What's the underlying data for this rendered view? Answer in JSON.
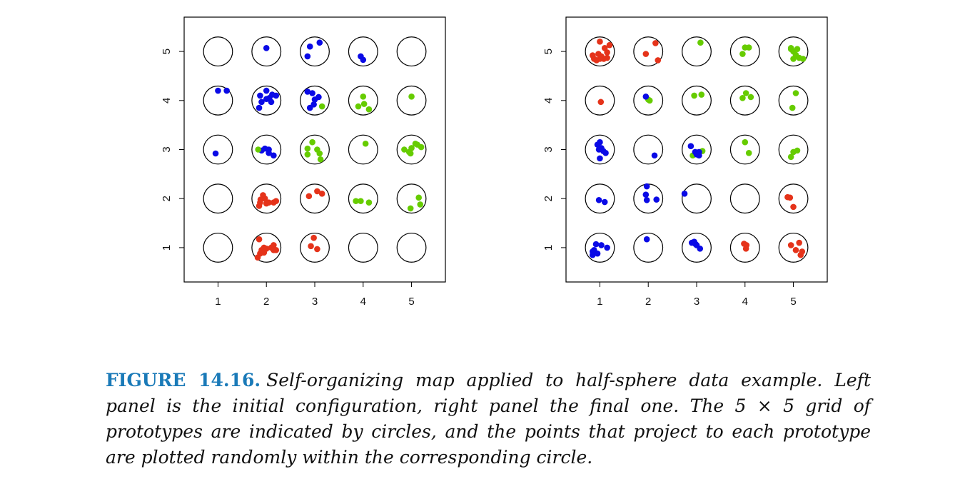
{
  "caption": {
    "label": "FIGURE 14.16.",
    "text": "Self-organizing map applied to half-sphere data example. Left panel is the initial configuration, right panel the final one. The 5 × 5 grid of prototypes are indicated by circles, and the points that project to each prototype are plotted randomly within the corresponding circle."
  },
  "colors": {
    "blue": "#0a0ae6",
    "green": "#66cc00",
    "red": "#e5331a",
    "circle": "#000000"
  },
  "chart_data": [
    {
      "type": "scatter",
      "panel": "left",
      "xlabel": "",
      "ylabel": "",
      "xlim": [
        0.3,
        5.7
      ],
      "ylim": [
        0.3,
        5.7
      ],
      "x_ticks": [
        "1",
        "2",
        "3",
        "4",
        "5"
      ],
      "y_ticks": [
        "1",
        "2",
        "3",
        "4",
        "5"
      ],
      "prototype_grid": [
        5,
        5
      ],
      "points": {
        "blue": [
          [
            2.0,
            5.07
          ],
          [
            2.85,
            4.9
          ],
          [
            2.9,
            5.1
          ],
          [
            3.1,
            5.18
          ],
          [
            3.95,
            4.9
          ],
          [
            4.0,
            4.83
          ],
          [
            1.0,
            4.2
          ],
          [
            1.18,
            4.2
          ],
          [
            1.87,
            4.1
          ],
          [
            1.9,
            3.97
          ],
          [
            2.0,
            4.2
          ],
          [
            2.06,
            4.05
          ],
          [
            2.1,
            3.97
          ],
          [
            2.12,
            4.12
          ],
          [
            1.85,
            3.85
          ],
          [
            2.2,
            4.1
          ],
          [
            2.0,
            4.03
          ],
          [
            2.85,
            4.18
          ],
          [
            2.95,
            4.15
          ],
          [
            3.0,
            4.02
          ],
          [
            3.08,
            4.07
          ],
          [
            2.98,
            3.92
          ],
          [
            2.9,
            3.85
          ],
          [
            0.95,
            2.92
          ],
          [
            1.9,
            2.98
          ],
          [
            1.97,
            3.02
          ],
          [
            2.05,
            3.0
          ],
          [
            2.05,
            2.93
          ],
          [
            2.15,
            2.88
          ]
        ],
        "green": [
          [
            3.15,
            3.88
          ],
          [
            3.9,
            3.88
          ],
          [
            4.0,
            4.08
          ],
          [
            4.02,
            3.93
          ],
          [
            4.12,
            3.82
          ],
          [
            5.0,
            4.08
          ],
          [
            1.83,
            3.0
          ],
          [
            2.85,
            3.02
          ],
          [
            2.95,
            3.15
          ],
          [
            2.85,
            2.9
          ],
          [
            3.05,
            3.0
          ],
          [
            3.1,
            2.92
          ],
          [
            3.12,
            2.8
          ],
          [
            4.05,
            3.12
          ],
          [
            4.85,
            3.0
          ],
          [
            4.95,
            2.95
          ],
          [
            5.0,
            3.03
          ],
          [
            5.08,
            3.12
          ],
          [
            5.12,
            3.1
          ],
          [
            5.2,
            3.05
          ],
          [
            4.98,
            2.92
          ],
          [
            3.85,
            1.95
          ],
          [
            3.95,
            1.95
          ],
          [
            4.12,
            1.92
          ],
          [
            5.15,
            2.02
          ],
          [
            5.18,
            1.88
          ],
          [
            4.98,
            1.8
          ]
        ],
        "red": [
          [
            1.85,
            1.85
          ],
          [
            1.88,
            1.98
          ],
          [
            1.93,
            2.07
          ],
          [
            1.97,
            2.0
          ],
          [
            2.05,
            1.92
          ],
          [
            2.15,
            1.92
          ],
          [
            2.2,
            1.95
          ],
          [
            1.87,
            1.92
          ],
          [
            2.0,
            1.9
          ],
          [
            2.88,
            2.05
          ],
          [
            3.05,
            2.15
          ],
          [
            3.15,
            2.1
          ],
          [
            1.85,
            1.17
          ],
          [
            1.87,
            0.88
          ],
          [
            1.9,
            0.95
          ],
          [
            1.95,
            1.0
          ],
          [
            2.0,
            0.98
          ],
          [
            2.1,
            1.0
          ],
          [
            2.15,
            1.05
          ],
          [
            2.15,
            0.95
          ],
          [
            2.2,
            0.95
          ],
          [
            1.82,
            0.8
          ],
          [
            1.95,
            0.9
          ],
          [
            2.92,
            1.03
          ],
          [
            2.98,
            1.2
          ],
          [
            3.05,
            0.97
          ]
        ]
      }
    },
    {
      "type": "scatter",
      "panel": "right",
      "xlabel": "",
      "ylabel": "",
      "xlim": [
        0.3,
        5.7
      ],
      "ylim": [
        0.3,
        5.7
      ],
      "x_ticks": [
        "1",
        "2",
        "3",
        "4",
        "5"
      ],
      "y_ticks": [
        "1",
        "2",
        "3",
        "4",
        "5"
      ],
      "prototype_grid": [
        5,
        5
      ],
      "points": {
        "red": [
          [
            0.85,
            4.92
          ],
          [
            0.88,
            4.85
          ],
          [
            0.93,
            4.82
          ],
          [
            0.97,
            4.95
          ],
          [
            1.0,
            5.2
          ],
          [
            1.03,
            4.9
          ],
          [
            1.08,
            4.85
          ],
          [
            1.1,
            5.07
          ],
          [
            1.15,
            4.98
          ],
          [
            1.2,
            5.13
          ],
          [
            1.15,
            4.87
          ],
          [
            1.0,
            4.85
          ],
          [
            1.95,
            4.95
          ],
          [
            2.15,
            5.17
          ],
          [
            2.2,
            4.82
          ],
          [
            1.02,
            3.97
          ],
          [
            4.88,
            2.03
          ],
          [
            4.93,
            2.02
          ],
          [
            5.0,
            1.83
          ],
          [
            3.98,
            1.08
          ],
          [
            4.02,
            0.98
          ],
          [
            4.03,
            1.05
          ],
          [
            4.95,
            1.05
          ],
          [
            5.05,
            0.95
          ],
          [
            5.12,
            1.1
          ],
          [
            5.15,
            0.85
          ],
          [
            5.18,
            0.92
          ]
        ],
        "green": [
          [
            3.08,
            5.18
          ],
          [
            3.95,
            4.95
          ],
          [
            4.0,
            5.08
          ],
          [
            4.08,
            5.08
          ],
          [
            4.95,
            5.05
          ],
          [
            5.0,
            5.0
          ],
          [
            5.05,
            4.93
          ],
          [
            5.08,
            5.05
          ],
          [
            5.12,
            4.87
          ],
          [
            5.2,
            4.85
          ],
          [
            4.95,
            5.07
          ],
          [
            5.0,
            4.85
          ],
          [
            2.0,
            4.02
          ],
          [
            2.03,
            4.0
          ],
          [
            2.95,
            4.1
          ],
          [
            3.1,
            4.12
          ],
          [
            3.95,
            4.05
          ],
          [
            4.02,
            4.15
          ],
          [
            4.12,
            4.07
          ],
          [
            5.05,
            4.15
          ],
          [
            4.98,
            3.85
          ],
          [
            2.92,
            2.88
          ],
          [
            3.12,
            2.97
          ],
          [
            4.0,
            3.15
          ],
          [
            4.08,
            2.93
          ],
          [
            4.95,
            2.85
          ],
          [
            5.0,
            2.95
          ],
          [
            5.08,
            2.98
          ]
        ],
        "blue": [
          [
            0.95,
            3.1
          ],
          [
            0.98,
            3.0
          ],
          [
            1.0,
            3.15
          ],
          [
            1.03,
            3.03
          ],
          [
            1.07,
            2.97
          ],
          [
            1.12,
            2.93
          ],
          [
            1.0,
            2.82
          ],
          [
            1.95,
            4.08
          ],
          [
            2.13,
            2.88
          ],
          [
            2.88,
            3.07
          ],
          [
            2.97,
            2.95
          ],
          [
            3.0,
            2.9
          ],
          [
            3.05,
            2.95
          ],
          [
            3.05,
            2.88
          ],
          [
            1.97,
            2.25
          ],
          [
            1.95,
            2.08
          ],
          [
            1.97,
            1.97
          ],
          [
            2.17,
            1.98
          ],
          [
            2.75,
            2.1
          ],
          [
            0.98,
            1.97
          ],
          [
            1.1,
            1.93
          ],
          [
            0.85,
            0.85
          ],
          [
            0.88,
            0.95
          ],
          [
            0.92,
            1.07
          ],
          [
            0.95,
            0.88
          ],
          [
            1.03,
            1.05
          ],
          [
            1.15,
            1.0
          ],
          [
            0.85,
            0.92
          ],
          [
            1.97,
            1.17
          ],
          [
            2.9,
            1.1
          ],
          [
            2.98,
            1.07
          ],
          [
            3.0,
            1.05
          ],
          [
            3.07,
            0.98
          ],
          [
            2.95,
            1.12
          ]
        ]
      }
    }
  ]
}
